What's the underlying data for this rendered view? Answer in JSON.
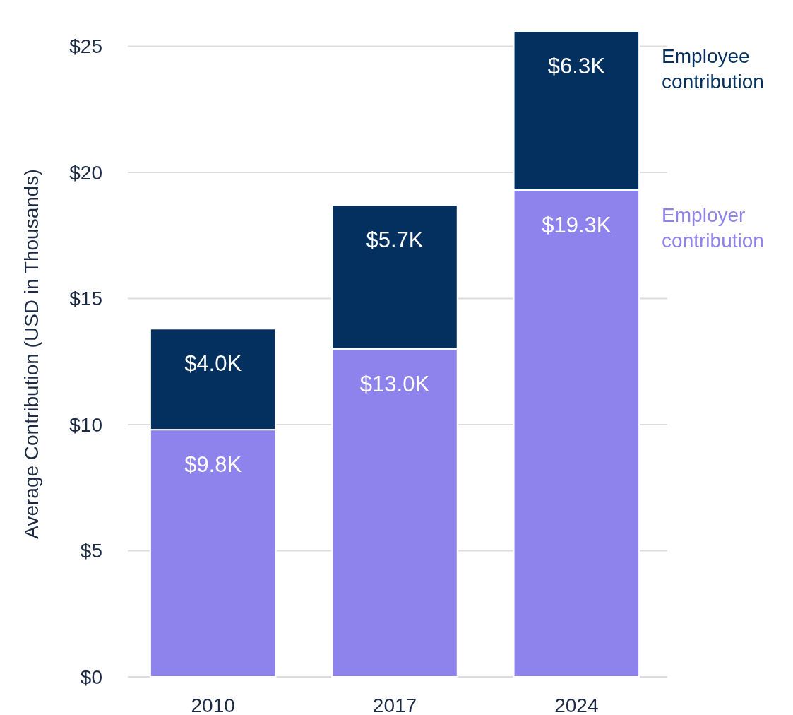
{
  "chart_data": {
    "type": "bar",
    "ylabel": "Average Contribution (USD in Thousands)",
    "categories": [
      "2010",
      "2017",
      "2024"
    ],
    "stacked": true,
    "series": [
      {
        "name": "Employer contribution",
        "color": "#8e82ec",
        "values": [
          9.8,
          13.0,
          19.3
        ],
        "value_labels": [
          "$9.8K",
          "$13.0K",
          "$19.3K"
        ]
      },
      {
        "name": "Employee contribution",
        "color": "#03305f",
        "values": [
          4.0,
          5.7,
          6.3
        ],
        "value_labels": [
          "$4.0K",
          "$5.7K",
          "$6.3K"
        ]
      }
    ],
    "ylim": [
      0,
      25.6
    ],
    "yticks": [
      {
        "value": 0,
        "label": "$0"
      },
      {
        "value": 5,
        "label": "$5"
      },
      {
        "value": 10,
        "label": "$10"
      },
      {
        "value": 15,
        "label": "$15"
      },
      {
        "value": 20,
        "label": "$20"
      },
      {
        "value": 25,
        "label": "$25"
      }
    ],
    "grid": "y",
    "legend": "right"
  }
}
